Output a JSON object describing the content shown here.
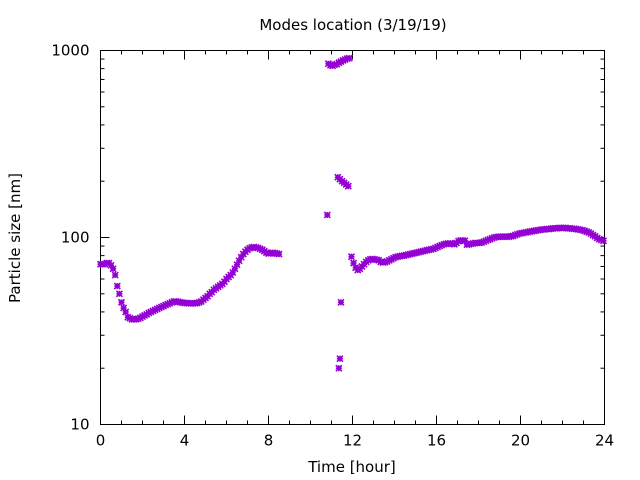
{
  "chart_data": {
    "type": "scatter",
    "title": "Modes location (3/19/19)",
    "xlabel": "Time [hour]",
    "ylabel": "Particle size [nm]",
    "xlim": [
      0,
      24
    ],
    "ylim": [
      10,
      1000
    ],
    "yscale": "log",
    "grid": false,
    "legend": "none",
    "x_ticks": [
      0,
      4,
      8,
      12,
      16,
      20,
      24
    ],
    "y_ticks": [
      10,
      100,
      1000
    ],
    "x_minor_ticks": [
      1,
      2,
      3,
      5,
      6,
      7,
      9,
      10,
      11,
      13,
      14,
      15,
      17,
      18,
      19,
      21,
      22,
      23
    ],
    "y_minor_ticks": [
      20,
      30,
      40,
      50,
      60,
      70,
      80,
      90,
      200,
      300,
      400,
      500,
      600,
      700,
      800,
      900
    ],
    "marker_color": "#9400D3",
    "x": [
      0.0,
      0.1,
      0.2,
      0.3,
      0.4,
      0.5,
      0.6,
      0.7,
      0.8,
      0.9,
      1.0,
      1.1,
      1.2,
      1.3,
      1.4,
      1.5,
      1.6,
      1.7,
      1.8,
      1.9,
      2.0,
      2.1,
      2.2,
      2.3,
      2.4,
      2.5,
      2.6,
      2.7,
      2.8,
      2.9,
      3.0,
      3.1,
      3.2,
      3.3,
      3.4,
      3.5,
      3.6,
      3.7,
      3.8,
      3.9,
      4.0,
      4.1,
      4.2,
      4.3,
      4.4,
      4.5,
      4.6,
      4.7,
      4.8,
      4.9,
      5.0,
      5.1,
      5.2,
      5.3,
      5.4,
      5.5,
      5.6,
      5.7,
      5.8,
      5.9,
      6.0,
      6.1,
      6.2,
      6.3,
      6.4,
      6.5,
      6.6,
      6.7,
      6.8,
      6.9,
      7.0,
      7.1,
      7.2,
      7.3,
      7.4,
      7.5,
      7.6,
      7.7,
      7.8,
      7.9,
      8.0,
      8.1,
      8.2,
      8.3,
      8.4,
      8.5,
      10.8,
      10.85,
      10.95,
      11.05,
      11.15,
      11.25,
      11.35,
      11.45,
      11.55,
      11.65,
      11.75,
      11.85,
      11.3,
      11.4,
      11.5,
      11.6,
      11.7,
      11.8,
      11.45,
      11.4,
      11.35,
      11.95,
      12.05,
      12.15,
      12.25,
      12.35,
      12.45,
      12.55,
      12.65,
      12.75,
      12.85,
      12.95,
      13.05,
      13.15,
      13.25,
      13.35,
      13.45,
      13.55,
      13.65,
      13.75,
      13.85,
      13.95,
      14.05,
      14.15,
      14.25,
      14.35,
      14.45,
      14.55,
      14.65,
      14.75,
      14.85,
      14.95,
      15.05,
      15.15,
      15.25,
      15.35,
      15.45,
      15.55,
      15.65,
      15.75,
      15.85,
      15.95,
      16.05,
      16.15,
      16.25,
      16.35,
      16.45,
      16.55,
      16.65,
      16.75,
      16.85,
      16.95,
      17.05,
      17.15,
      17.25,
      17.35,
      17.45,
      17.55,
      17.65,
      17.75,
      17.85,
      17.95,
      18.05,
      18.15,
      18.25,
      18.35,
      18.45,
      18.55,
      18.65,
      18.75,
      18.85,
      18.95,
      19.05,
      19.15,
      19.25,
      19.35,
      19.45,
      19.55,
      19.65,
      19.75,
      19.85,
      19.95,
      20.05,
      20.15,
      20.25,
      20.35,
      20.45,
      20.55,
      20.65,
      20.75,
      20.85,
      20.95,
      21.05,
      21.15,
      21.25,
      21.35,
      21.45,
      21.55,
      21.65,
      21.75,
      21.85,
      21.95,
      22.05,
      22.15,
      22.25,
      22.35,
      22.45,
      22.55,
      22.65,
      22.75,
      22.85,
      22.95,
      23.05,
      23.15,
      23.25,
      23.35,
      23.45,
      23.55,
      23.65,
      23.75,
      23.85,
      23.95
    ],
    "y": [
      72,
      72,
      72,
      73,
      73,
      71,
      68,
      63,
      55,
      50,
      45,
      42,
      40,
      37.5,
      37,
      36.5,
      36.5,
      36.5,
      36.8,
      37.2,
      37.8,
      38.3,
      38.8,
      39.5,
      40,
      40.5,
      41,
      41.5,
      42,
      42.5,
      43,
      43.5,
      44,
      44.5,
      45,
      45.5,
      45.5,
      45.3,
      45,
      44.8,
      44.7,
      44.6,
      44.5,
      44.5,
      44.5,
      44.5,
      44.6,
      45,
      45.5,
      46.5,
      47.5,
      48.5,
      50,
      51,
      52.5,
      53.5,
      54.5,
      55.5,
      56.5,
      58,
      60,
      61.5,
      63,
      65,
      68,
      71.5,
      75,
      78.5,
      81.5,
      84,
      86,
      87.5,
      88.5,
      89,
      88.5,
      88,
      87,
      86,
      84.5,
      83,
      82,
      82.5,
      83,
      82.5,
      82,
      81.5,
      132,
      850,
      835,
      828,
      838,
      845,
      860,
      872,
      885,
      895,
      905,
      910,
      210,
      205,
      200,
      196,
      192,
      188,
      45,
      22.5,
      20,
      79,
      73,
      69,
      67,
      68,
      70,
      72,
      74,
      75.5,
      76.5,
      76.8,
      76.5,
      76,
      75.5,
      74,
      73.5,
      73.8,
      74.5,
      75.5,
      76.5,
      77.5,
      78.5,
      79,
      79.5,
      79.8,
      80,
      80.5,
      81,
      81.5,
      82,
      82.5,
      83,
      83.5,
      84,
      84.5,
      85,
      85.5,
      86,
      86.5,
      87,
      88,
      89,
      90,
      91,
      92,
      92.5,
      93,
      93,
      92.5,
      92,
      93.5,
      95.5,
      96.5,
      96.5,
      96,
      91.5,
      92,
      92.5,
      93,
      93.5,
      93.5,
      93.5,
      94,
      95,
      96,
      97,
      98,
      99,
      100,
      100.5,
      101,
      101,
      101,
      101,
      101,
      101,
      101.5,
      102,
      103,
      104,
      105,
      105.5,
      106,
      106.5,
      107,
      107.5,
      108,
      108.5,
      109,
      109.5,
      110,
      110.5,
      110.5,
      111,
      111,
      111.5,
      112,
      112,
      112,
      112.5,
      112.5,
      112.5,
      112.5,
      112,
      112,
      111.5,
      111.5,
      111,
      110.5,
      110,
      109.5,
      108.5,
      107.5,
      106.5,
      105,
      103,
      101.5,
      99.5,
      98,
      97,
      96
    ]
  }
}
